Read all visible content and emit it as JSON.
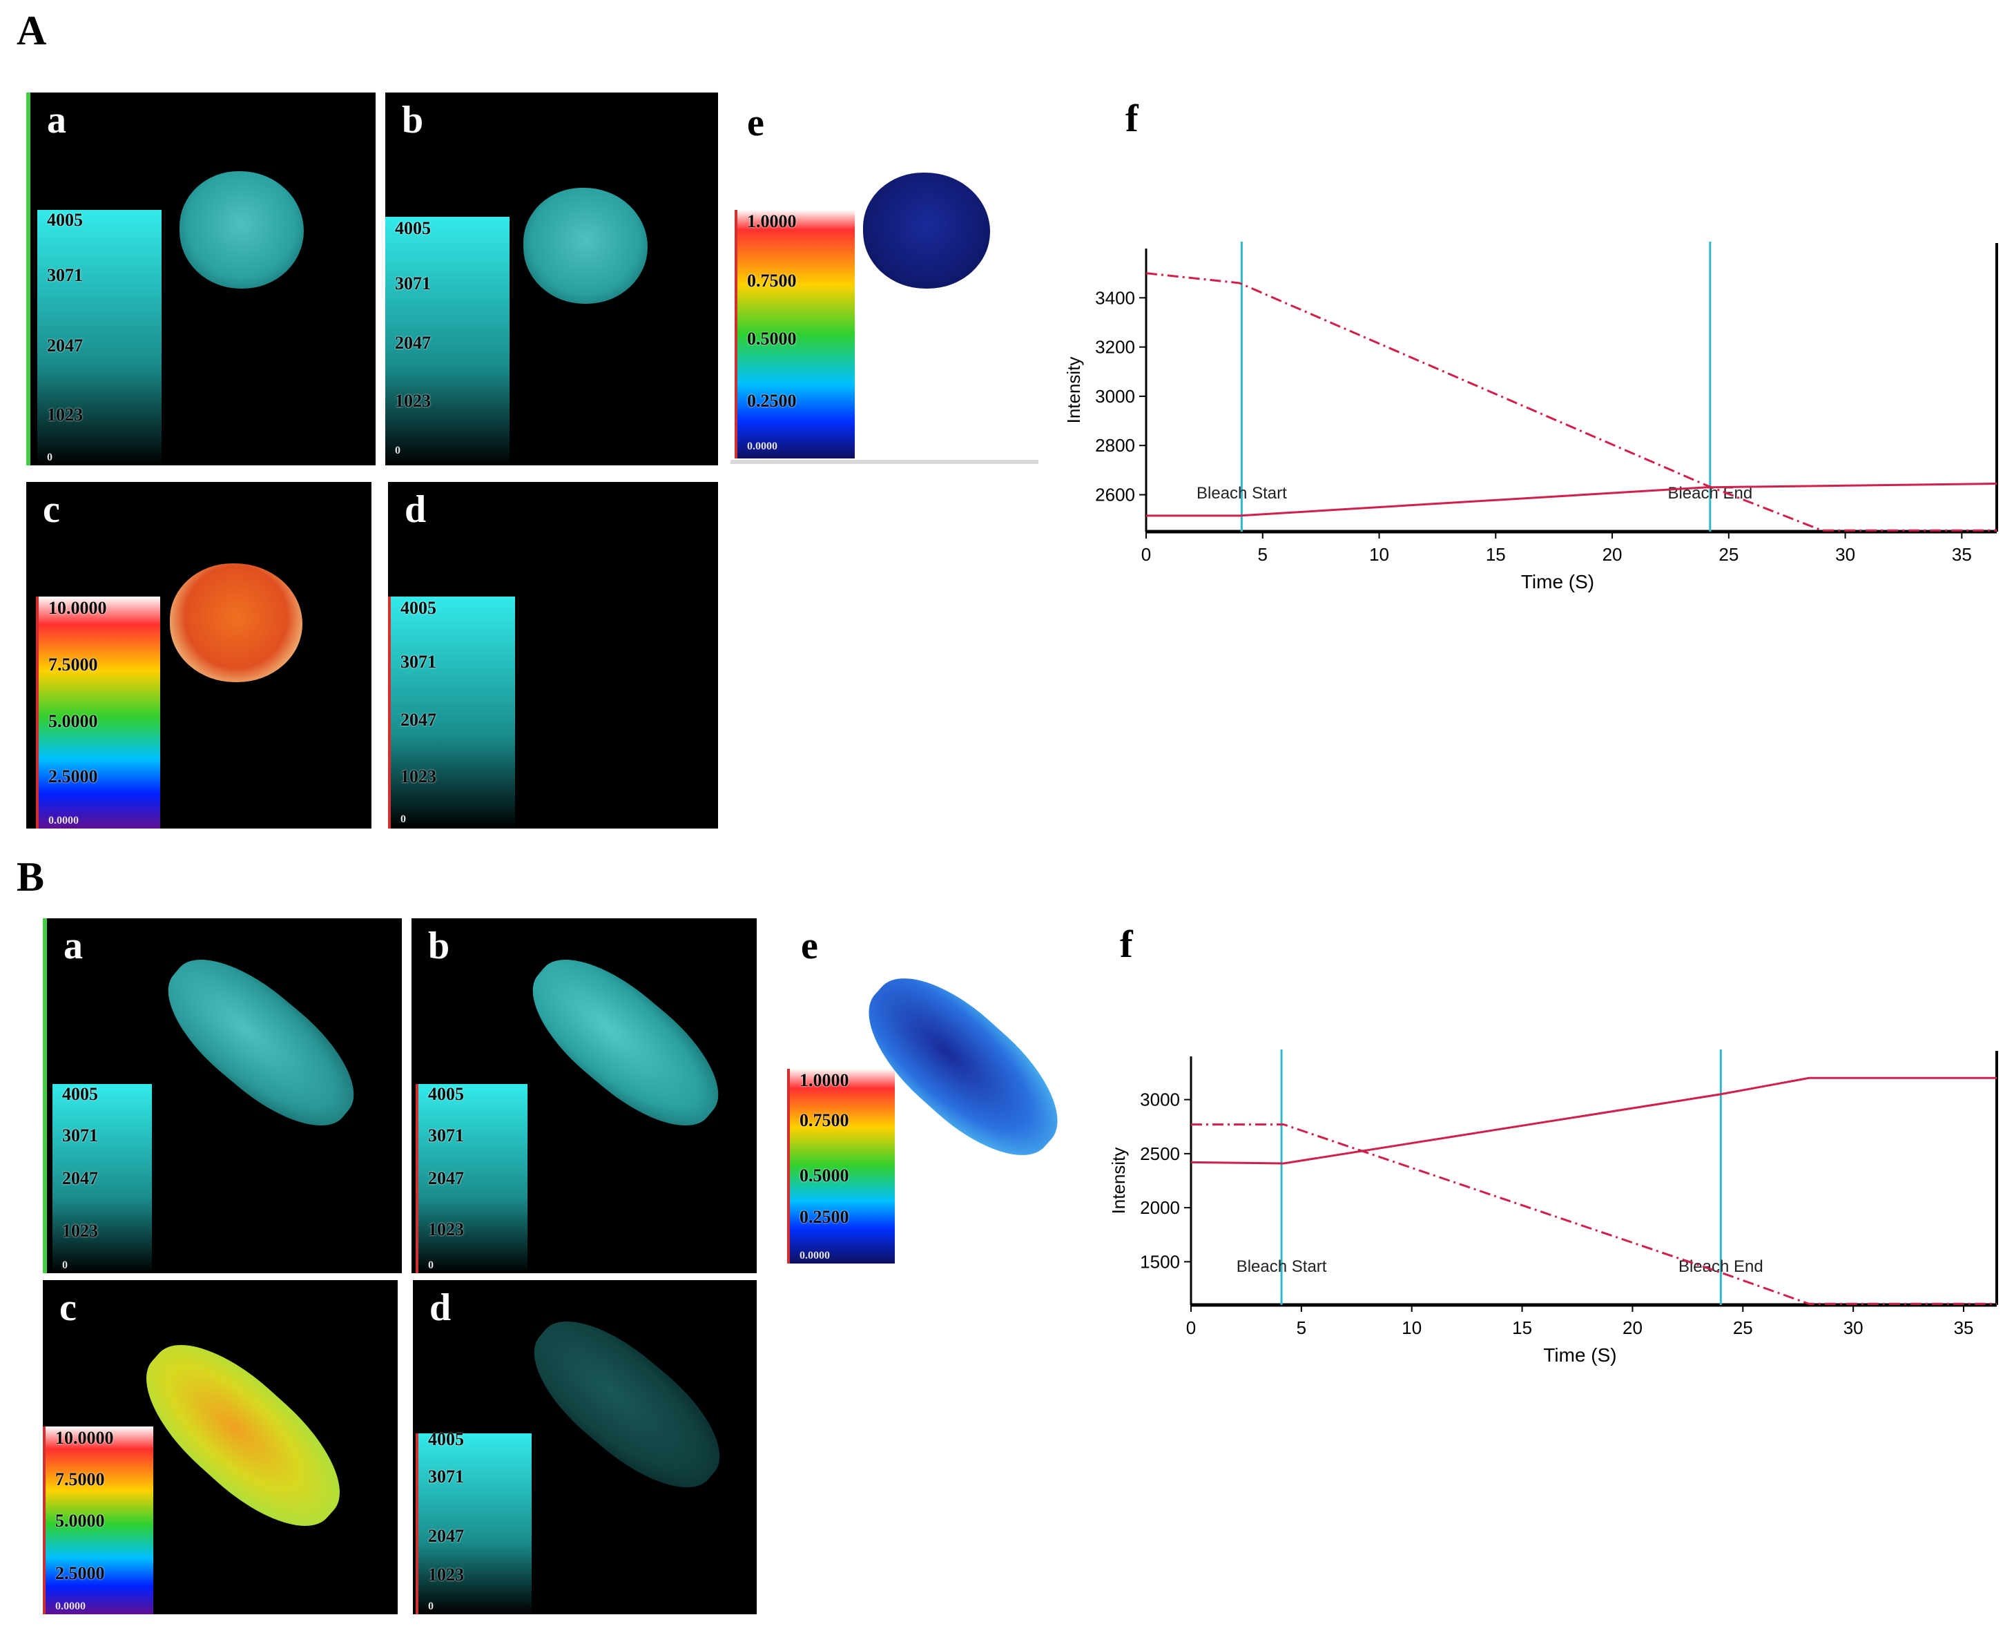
{
  "sections": [
    "A",
    "B"
  ],
  "panel_labels": [
    "a",
    "b",
    "c",
    "d",
    "e",
    "f"
  ],
  "scales": {
    "intensity": [
      "4005",
      "3071",
      "2047",
      "1023",
      "0"
    ],
    "fret": [
      "10.0000",
      "7.5000",
      "5.0000",
      "2.5000",
      "0.0000"
    ],
    "ratio": [
      "1.0000",
      "0.7500",
      "0.5000",
      "0.2500",
      "0.0000"
    ]
  },
  "colors": {
    "trace": "#d0204a",
    "bleach_marker": "#33b8c8",
    "cyan": "#33eaea"
  },
  "chart_data": [
    {
      "section": "A",
      "type": "line",
      "xlabel": "Time  (S)",
      "ylabel": "Intensity",
      "xlim": [
        0,
        36.5
      ],
      "ylim": [
        2450,
        3600
      ],
      "xticks": [
        0,
        5,
        10,
        15,
        20,
        25,
        30,
        35
      ],
      "yticks": [
        2600,
        2800,
        3000,
        3200,
        3400
      ],
      "annotations": [
        {
          "text": "Bleach Start",
          "x": 4.1
        },
        {
          "text": "Bleach End",
          "x": 24.2
        }
      ],
      "series": [
        {
          "style": "dashdot",
          "x": [
            0,
            4,
            24,
            29,
            36.5
          ],
          "y": [
            3500,
            3460,
            2640,
            2455,
            2455
          ]
        },
        {
          "style": "solid",
          "x": [
            0,
            4,
            24,
            36.5
          ],
          "y": [
            2515,
            2515,
            2630,
            2645
          ]
        }
      ]
    },
    {
      "section": "B",
      "type": "line",
      "xlabel": "Time  (S)",
      "ylabel": "Intensity",
      "xlim": [
        0,
        36.5
      ],
      "ylim": [
        1100,
        3400
      ],
      "xticks": [
        0,
        5,
        10,
        15,
        20,
        25,
        30,
        35
      ],
      "yticks": [
        1500,
        2000,
        2500,
        3000
      ],
      "annotations": [
        {
          "text": "Bleach Start",
          "x": 4.1
        },
        {
          "text": "Bleach End",
          "x": 24.0
        }
      ],
      "series": [
        {
          "style": "dashdot",
          "x": [
            0,
            4.2,
            24,
            28,
            36.5
          ],
          "y": [
            2770,
            2770,
            1400,
            1110,
            1110
          ]
        },
        {
          "style": "solid",
          "x": [
            0,
            4.2,
            24,
            28,
            36.5
          ],
          "y": [
            2420,
            2410,
            3050,
            3200,
            3200
          ]
        }
      ]
    }
  ]
}
